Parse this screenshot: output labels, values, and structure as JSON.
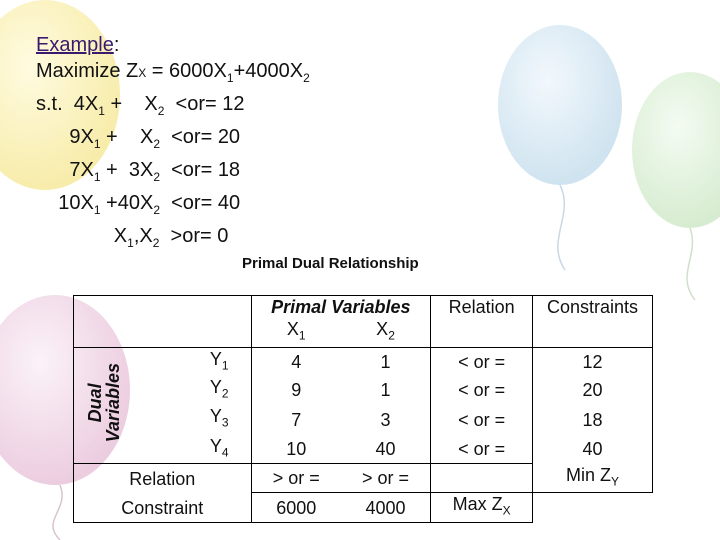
{
  "example": {
    "heading": "Example",
    "colon": ":",
    "objective": {
      "a": "Maximize Z",
      "zsub": "X",
      "b": " = 6000X",
      "s1": "1",
      "c": "+4000X",
      "s2": "2"
    },
    "constraints": [
      {
        "pre": "s.t.  4X",
        "s1": "1",
        "mid": " +    X",
        "s2": "2",
        "post": "  <or= 12"
      },
      {
        "pre": "      9X",
        "s1": "1",
        "mid": " +    X",
        "s2": "2",
        "post": "  <or= 20"
      },
      {
        "pre": "      7X",
        "s1": "1",
        "mid": " +  3X",
        "s2": "2",
        "post": "  <or= 18"
      },
      {
        "pre": "    10X",
        "s1": "1",
        "mid": " +40X",
        "s2": "2",
        "post": "  <or= 40"
      }
    ],
    "nonneg": {
      "pre": "              X",
      "s1": "1",
      "mid": ",X",
      "s2": "2",
      "post": "  >or= 0"
    }
  },
  "relationship_title": "Primal Dual Relationship",
  "table": {
    "primal_variables": "Primal Variables",
    "relation": "Relation",
    "constraints": "Constraints",
    "dual_variables": "Dual\nVariables",
    "x1": {
      "base": "X",
      "sub": "1"
    },
    "x2": {
      "base": "X",
      "sub": "2"
    },
    "rows": [
      {
        "y": "Y",
        "ysub": "1",
        "c1": "4",
        "c2": "1",
        "rel": "< or =",
        "rhs": "12"
      },
      {
        "y": "Y",
        "ysub": "2",
        "c1": "9",
        "c2": "1",
        "rel": "< or =",
        "rhs": "20"
      },
      {
        "y": "Y",
        "ysub": "3",
        "c1": "7",
        "c2": "3",
        "rel": "< or =",
        "rhs": "18"
      },
      {
        "y": "Y",
        "ysub": "4",
        "c1": "10",
        "c2": "40",
        "rel": "< or =",
        "rhs": "40"
      }
    ],
    "relation_label": "Relation",
    "constraint_label": "Constraint",
    "rel_x1": "> or =",
    "rel_x2": "> or =",
    "rhs_x1": "6000",
    "rhs_x2": "4000",
    "min_z": {
      "base": "Min Z",
      "sub": "Y"
    },
    "max_z": {
      "base": "Max Z",
      "sub": "X"
    }
  }
}
